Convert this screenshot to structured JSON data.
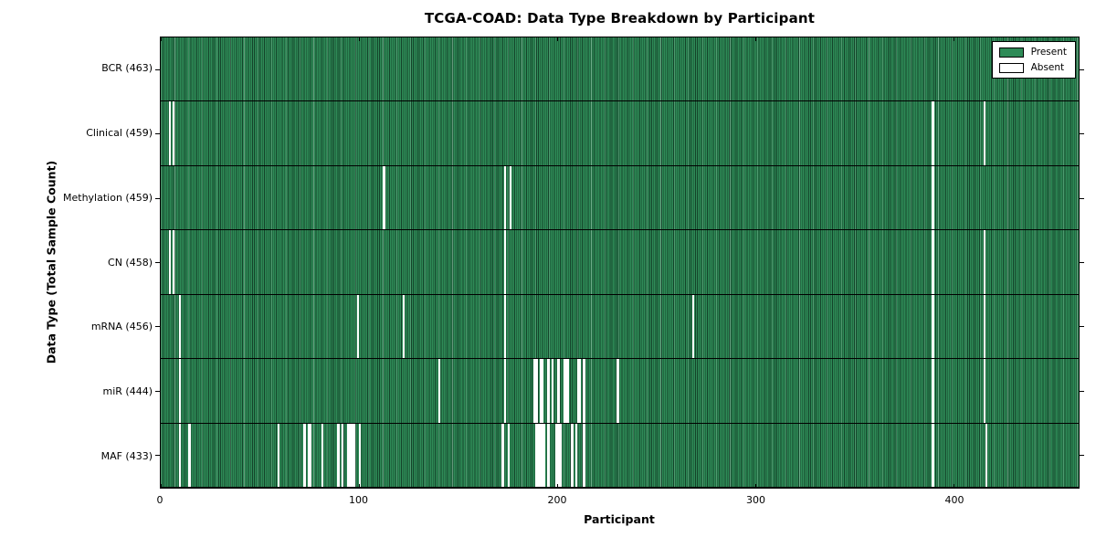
{
  "chart_data": {
    "type": "heatmap",
    "title": "TCGA-COAD: Data Type Breakdown by Participant",
    "xlabel": "Participant",
    "ylabel": "Data Type (Total Sample Count)",
    "n_participants": 463,
    "xlim": [
      0,
      463
    ],
    "x_ticks": [
      0,
      100,
      200,
      300,
      400
    ],
    "legend_position": "upper right",
    "grid": false,
    "colors": {
      "present": "#2e8b57",
      "absent": "#ffffff",
      "bar_edge": "#14432a",
      "axis": "#000000"
    },
    "legend": [
      {
        "label": "Present",
        "color": "#2e8b57"
      },
      {
        "label": "Absent",
        "color": "#ffffff"
      }
    ],
    "rows": [
      {
        "name": "BCR",
        "label": "BCR (463)",
        "present_count": 463,
        "absent_participants": []
      },
      {
        "name": "Clinical",
        "label": "Clinical (459)",
        "present_count": 459,
        "absent_participants": [
          4,
          6,
          389,
          415
        ]
      },
      {
        "name": "Methylation",
        "label": "Methylation (459)",
        "present_count": 459,
        "absent_participants": [
          112,
          173,
          176,
          389
        ]
      },
      {
        "name": "CN",
        "label": "CN (458)",
        "present_count": 458,
        "absent_participants": [
          4,
          6,
          173,
          389,
          415
        ]
      },
      {
        "name": "mRNA",
        "label": "mRNA (456)",
        "present_count": 456,
        "absent_participants": [
          9,
          99,
          122,
          173,
          268,
          389,
          415
        ]
      },
      {
        "name": "miR",
        "label": "miR (444)",
        "present_count": 444,
        "absent_participants": [
          9,
          140,
          173,
          188,
          189,
          191,
          192,
          195,
          197,
          200,
          203,
          204,
          205,
          210,
          211,
          213,
          230,
          389,
          415
        ]
      },
      {
        "name": "MAF",
        "label": "MAF (433)",
        "present_count": 433,
        "absent_participants": [
          9,
          14,
          59,
          72,
          74,
          75,
          81,
          89,
          91,
          94,
          95,
          96,
          97,
          100,
          172,
          175,
          189,
          190,
          191,
          192,
          193,
          195,
          199,
          200,
          201,
          207,
          209,
          213,
          389,
          416
        ]
      }
    ]
  }
}
